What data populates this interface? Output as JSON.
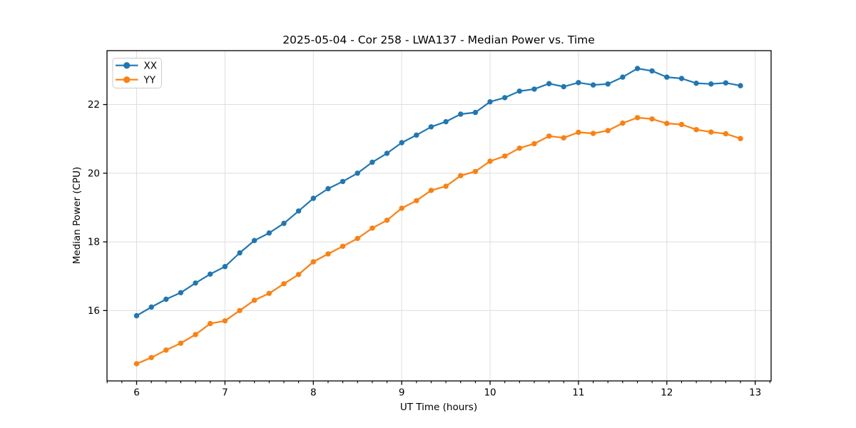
{
  "chart_data": {
    "type": "line",
    "title": "2025-05-04 - Cor 258 - LWA137 - Median Power vs. Time",
    "xlabel": "UT Time (hours)",
    "ylabel": "Median Power (CPU)",
    "xlim": [
      5.665,
      13.18
    ],
    "ylim": [
      13.95,
      23.57
    ],
    "xticks": [
      6,
      7,
      8,
      9,
      10,
      11,
      12,
      13
    ],
    "yticks": [
      16,
      18,
      20,
      22
    ],
    "x_minor_step": 0.166667,
    "grid": true,
    "legend": {
      "position": "upper left"
    },
    "x": [
      6.0,
      6.167,
      6.333,
      6.5,
      6.667,
      6.833,
      7.0,
      7.167,
      7.333,
      7.5,
      7.667,
      7.833,
      8.0,
      8.167,
      8.333,
      8.5,
      8.667,
      8.833,
      9.0,
      9.167,
      9.333,
      9.5,
      9.667,
      9.833,
      10.0,
      10.167,
      10.333,
      10.5,
      10.667,
      10.833,
      11.0,
      11.167,
      11.333,
      11.5,
      11.667,
      11.833,
      12.0,
      12.167,
      12.333,
      12.5,
      12.667,
      12.833
    ],
    "series": [
      {
        "name": "XX",
        "color": "#1f77b4",
        "marker": "circle",
        "values": [
          15.85,
          16.1,
          16.33,
          16.52,
          16.8,
          17.06,
          17.28,
          17.68,
          18.04,
          18.26,
          18.54,
          18.9,
          19.27,
          19.55,
          19.76,
          20.0,
          20.32,
          20.58,
          20.89,
          21.11,
          21.35,
          21.5,
          21.72,
          21.77,
          22.08,
          22.2,
          22.39,
          22.45,
          22.61,
          22.52,
          22.64,
          22.57,
          22.6,
          22.8,
          23.05,
          22.98,
          22.8,
          22.76,
          22.62,
          22.6,
          22.63,
          22.55
        ]
      },
      {
        "name": "YY",
        "color": "#ff7f0e",
        "marker": "circle",
        "values": [
          14.45,
          14.63,
          14.85,
          15.05,
          15.3,
          15.62,
          15.7,
          16.0,
          16.3,
          16.5,
          16.78,
          17.05,
          17.42,
          17.65,
          17.87,
          18.1,
          18.4,
          18.63,
          18.98,
          19.2,
          19.5,
          19.62,
          19.93,
          20.05,
          20.35,
          20.5,
          20.73,
          20.86,
          21.08,
          21.03,
          21.19,
          21.16,
          21.24,
          21.46,
          21.62,
          21.58,
          21.45,
          21.42,
          21.27,
          21.2,
          21.15,
          21.01
        ]
      }
    ]
  },
  "colors": {
    "grid": "#dedede",
    "spine": "#000000",
    "background": "#ffffff",
    "legend_border": "#cccccc"
  }
}
